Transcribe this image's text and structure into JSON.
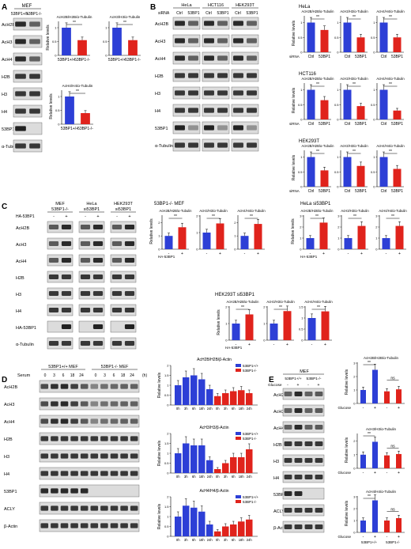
{
  "colors": {
    "blue": "#2d3fd6",
    "red": "#e0231c",
    "band": "#222222",
    "blot_bg": "#dcdcdc",
    "axis": "#000000"
  },
  "panelA": {
    "letter": "A",
    "header": "MEF",
    "cols": [
      "53BP1+/+",
      "53BP1-/-"
    ],
    "rows": [
      "AcH2B",
      "AcH3",
      "AcH4",
      "H2B",
      "H3",
      "H4",
      "53BP1",
      "α-Tubulin"
    ],
    "ylabel": "Relative levels",
    "chart_titles": [
      "AcH2B/H2B/α-Tubulin",
      "AcH3/H3/α-Tubulin",
      "AcH4/H4/α-Tubulin"
    ],
    "xcats": [
      "53BP1+/+",
      "53BP1-/-"
    ],
    "sig": "**"
  },
  "panelB": {
    "letter": "B",
    "groups": [
      "HeLa",
      "HCT116",
      "HEK293T"
    ],
    "sirna_label": "siRNA",
    "lane_labels": [
      "Ctrl",
      "53BP1"
    ],
    "rows": [
      "AcH2B",
      "AcH3",
      "AcH4",
      "H2B",
      "H3",
      "H4",
      "53BP1",
      "α-Tubulin"
    ],
    "ylabel": "Relative levels",
    "chart_titles": [
      "AcH2B/H2B/α-Tubulin",
      "AcH3/H3/α-Tubulin",
      "AcH4/H4/α-Tubulin"
    ],
    "xcats": [
      "Ctrl",
      "53BP1"
    ],
    "sig": "**"
  },
  "panelC": {
    "letter": "C",
    "groups": [
      "MEF 53BP1-/-",
      "HeLa si53BP1",
      "HEK293T si53BP1"
    ],
    "treatment": "HA-53BP1",
    "signs": [
      "-",
      "+"
    ],
    "rows": [
      "AcH2B",
      "AcH3",
      "AcH4",
      "H2B",
      "H3",
      "H4",
      "HA-53BP1",
      "α-Tubulin"
    ],
    "chart_groups": [
      "53BP1-/- MEF",
      "HeLa si53BP1",
      "HEK293T si53BP1"
    ],
    "ylabel": "Relative levels",
    "chart_titles": [
      "AcH2B/H2B/α-Tubulin",
      "AcH3/H3/α-Tubulin",
      "AcH4/H4/α-Tubulin"
    ],
    "sig": "**"
  },
  "panelD": {
    "letter": "D",
    "header_wt": "53BP1+/+ MEF",
    "header_ko": "53BP1-/- MEF",
    "serum_label": "Serum",
    "times": [
      "0",
      "3",
      "6",
      "18",
      "24"
    ],
    "unit": "(h)",
    "rows": [
      "AcH2B",
      "AcH3",
      "AcH4",
      "H2B",
      "H3",
      "H4",
      "53BP1",
      "ACLY",
      "β-Actin"
    ],
    "ylabel": "Relative levels",
    "chart_titles": [
      "AcH2B/H2B/β-Actin",
      "AcH3/H3/β-Actin",
      "AcH4/H4/β-Actin"
    ],
    "xcats": [
      "0h",
      "3h",
      "6h",
      "18h",
      "24h"
    ],
    "legend": [
      "53BP1+/+",
      "53BP1-/-"
    ]
  },
  "panelE": {
    "letter": "E",
    "header": "MEF",
    "genotypes": [
      "53BP1+/+",
      "53BP1-/-"
    ],
    "treatment": "Glucose",
    "signs": [
      "-",
      "+"
    ],
    "rows": [
      "AcH2B",
      "AcH3",
      "AcH4",
      "H2B",
      "H3",
      "H4",
      "53BP1",
      "ACLY",
      "β-Actin"
    ],
    "ylabel": "Relative levels",
    "chart_titles": [
      "AcH2B/H2B/α-Tubulin",
      "AcH3/H3/α-Tubulin",
      "AcH4/H4/α-Tubulin"
    ],
    "sig": "**",
    "ns": "ns"
  },
  "chart_data": [
    {
      "id": "A1",
      "type": "bar",
      "title": "AcH2B/H2B/α-Tubulin",
      "ylabel": "Relative levels",
      "categories": [
        "53BP1+/+",
        "53BP1-/-"
      ],
      "values": [
        1.0,
        0.55
      ],
      "ylim": [
        0,
        1.2
      ]
    },
    {
      "id": "A2",
      "type": "bar",
      "title": "AcH3/H3/α-Tubulin",
      "categories": [
        "53BP1+/+",
        "53BP1-/-"
      ],
      "values": [
        1.0,
        0.55
      ],
      "ylim": [
        0,
        1.2
      ]
    },
    {
      "id": "A3",
      "type": "bar",
      "title": "AcH4/H4/α-Tubulin",
      "categories": [
        "53BP1+/+",
        "53BP1-/-"
      ],
      "values": [
        1.0,
        0.4
      ],
      "ylim": [
        0,
        1.2
      ]
    },
    {
      "id": "B1",
      "type": "bar",
      "title": "AcH2B/H2B/α-Tubulin",
      "categories": [
        "Ctrl",
        "53BP1"
      ],
      "values": [
        1.0,
        0.75
      ],
      "ylim": [
        0,
        1.2
      ]
    },
    {
      "id": "B2",
      "type": "bar",
      "title": "AcH3/H3/α-Tubulin",
      "categories": [
        "Ctrl",
        "53BP1"
      ],
      "values": [
        1.0,
        0.5
      ],
      "ylim": [
        0,
        1.2
      ]
    },
    {
      "id": "B3",
      "type": "bar",
      "title": "AcH4/H4/α-Tubulin",
      "categories": [
        "Ctrl",
        "53BP1"
      ],
      "values": [
        1.0,
        0.5
      ],
      "ylim": [
        0,
        1.2
      ]
    },
    {
      "id": "B4",
      "type": "bar",
      "title": "AcH2B/H2B/α-Tubulin",
      "categories": [
        "Ctrl",
        "53BP1"
      ],
      "values": [
        1.0,
        0.65
      ],
      "ylim": [
        0,
        1.2
      ]
    },
    {
      "id": "B5",
      "type": "bar",
      "title": "AcH3/H3/α-Tubulin",
      "categories": [
        "Ctrl",
        "53BP1"
      ],
      "values": [
        1.0,
        0.45
      ],
      "ylim": [
        0,
        1.2
      ]
    },
    {
      "id": "B6",
      "type": "bar",
      "title": "AcH4/H4/α-Tubulin",
      "categories": [
        "Ctrl",
        "53BP1"
      ],
      "values": [
        1.0,
        0.3
      ],
      "ylim": [
        0,
        1.2
      ]
    },
    {
      "id": "B7",
      "type": "bar",
      "title": "AcH2B/H2B/α-Tubulin",
      "categories": [
        "Ctrl",
        "53BP1"
      ],
      "values": [
        1.0,
        0.55
      ],
      "ylim": [
        0,
        1.2
      ]
    },
    {
      "id": "B8",
      "type": "bar",
      "title": "AcH3/H3/α-Tubulin",
      "categories": [
        "Ctrl",
        "53BP1"
      ],
      "values": [
        1.0,
        0.7
      ],
      "ylim": [
        0,
        1.2
      ]
    },
    {
      "id": "B9",
      "type": "bar",
      "title": "AcH4/H4/α-Tubulin",
      "categories": [
        "Ctrl",
        "53BP1"
      ],
      "values": [
        1.0,
        0.6
      ],
      "ylim": [
        0,
        1.2
      ]
    },
    {
      "id": "C1",
      "type": "bar",
      "title": "AcH2B/H2B/α-Tubulin",
      "categories": [
        "-",
        "+"
      ],
      "values": [
        1.0,
        1.65
      ],
      "ylim": [
        0,
        2.5
      ]
    },
    {
      "id": "C2",
      "type": "bar",
      "title": "AcH3/H3/α-Tubulin",
      "categories": [
        "-",
        "+"
      ],
      "values": [
        1.0,
        1.55
      ],
      "ylim": [
        0,
        2.0
      ]
    },
    {
      "id": "C3",
      "type": "bar",
      "title": "AcH4/H4/α-Tubulin",
      "categories": [
        "-",
        "+"
      ],
      "values": [
        1.0,
        1.9
      ],
      "ylim": [
        0,
        2.5
      ]
    },
    {
      "id": "C4",
      "type": "bar",
      "title": "AcH2B/H2B/α-Tubulin",
      "categories": [
        "-",
        "+"
      ],
      "values": [
        1.0,
        2.4
      ],
      "ylim": [
        0,
        3
      ]
    },
    {
      "id": "C5",
      "type": "bar",
      "title": "AcH3/H3/α-Tubulin",
      "categories": [
        "-",
        "+"
      ],
      "values": [
        1.0,
        2.1
      ],
      "ylim": [
        0,
        3
      ]
    },
    {
      "id": "C6",
      "type": "bar",
      "title": "AcH4/H4/α-Tubulin",
      "categories": [
        "-",
        "+"
      ],
      "values": [
        1.0,
        2.1
      ],
      "ylim": [
        0,
        3
      ]
    },
    {
      "id": "C7",
      "type": "bar",
      "title": "AcH2B/H2B/α-Tubulin",
      "categories": [
        "-",
        "+"
      ],
      "values": [
        1.0,
        1.55
      ],
      "ylim": [
        0,
        2.0
      ]
    },
    {
      "id": "C8",
      "type": "bar",
      "title": "AcH3/H3/α-Tubulin",
      "categories": [
        "-",
        "+"
      ],
      "values": [
        1.0,
        1.75
      ],
      "ylim": [
        0,
        2.0
      ]
    },
    {
      "id": "C9",
      "type": "bar",
      "title": "AcH4/H4/α-Tubulin",
      "categories": [
        "-",
        "+"
      ],
      "values": [
        1.0,
        1.3
      ],
      "ylim": [
        0,
        1.5
      ]
    },
    {
      "id": "D1",
      "type": "bar",
      "title": "AcH2B/H2B/β-Actin",
      "categories": [
        "0h",
        "3h",
        "6h",
        "18h",
        "24h"
      ],
      "series": [
        {
          "name": "53BP1+/+",
          "values": [
            1.0,
            1.4,
            1.5,
            1.3,
            0.8
          ]
        },
        {
          "name": "53BP1-/-",
          "values": [
            0.45,
            0.6,
            0.7,
            0.75,
            0.6
          ]
        }
      ],
      "ylim": [
        0,
        2.0
      ]
    },
    {
      "id": "D2",
      "type": "bar",
      "title": "AcH3/H3/β-Actin",
      "categories": [
        "0h",
        "3h",
        "6h",
        "18h",
        "24h"
      ],
      "series": [
        {
          "name": "53BP1+/+",
          "values": [
            1.0,
            1.5,
            1.4,
            1.4,
            0.65
          ]
        },
        {
          "name": "53BP1-/-",
          "values": [
            0.2,
            0.5,
            0.8,
            0.8,
            1.2
          ]
        }
      ],
      "ylim": [
        0,
        2.0
      ]
    },
    {
      "id": "D3",
      "type": "bar",
      "title": "AcH4/H4/β-Actin",
      "categories": [
        "0h",
        "3h",
        "6h",
        "18h",
        "24h"
      ],
      "series": [
        {
          "name": "53BP1+/+",
          "values": [
            1.0,
            1.55,
            1.45,
            1.25,
            0.6
          ]
        },
        {
          "name": "53BP1-/-",
          "values": [
            0.25,
            0.5,
            0.6,
            0.75,
            0.85
          ]
        }
      ],
      "ylim": [
        0,
        2.0
      ]
    },
    {
      "id": "E1",
      "type": "bar",
      "title": "AcH2B/H2B/α-Tubulin",
      "categories": [
        "53BP1+/+ -",
        "53BP1+/+ +",
        "53BP1-/- -",
        "53BP1-/- +"
      ],
      "values": [
        1.0,
        2.5,
        0.9,
        1.05
      ],
      "ylim": [
        0,
        3
      ]
    },
    {
      "id": "E2",
      "type": "bar",
      "title": "AcH3/H3/α-Tubulin",
      "categories": [
        "53BP1+/+ -",
        "53BP1+/+ +",
        "53BP1-/- -",
        "53BP1-/- +"
      ],
      "values": [
        1.0,
        1.95,
        0.95,
        1.05
      ],
      "ylim": [
        0,
        2.5
      ]
    },
    {
      "id": "E3",
      "type": "bar",
      "title": "AcH4/H4/α-Tubulin",
      "categories": [
        "53BP1+/+ -",
        "53BP1+/+ +",
        "53BP1-/- -",
        "53BP1-/- +"
      ],
      "values": [
        1.0,
        2.7,
        1.0,
        1.2
      ],
      "ylim": [
        0,
        3
      ]
    }
  ]
}
